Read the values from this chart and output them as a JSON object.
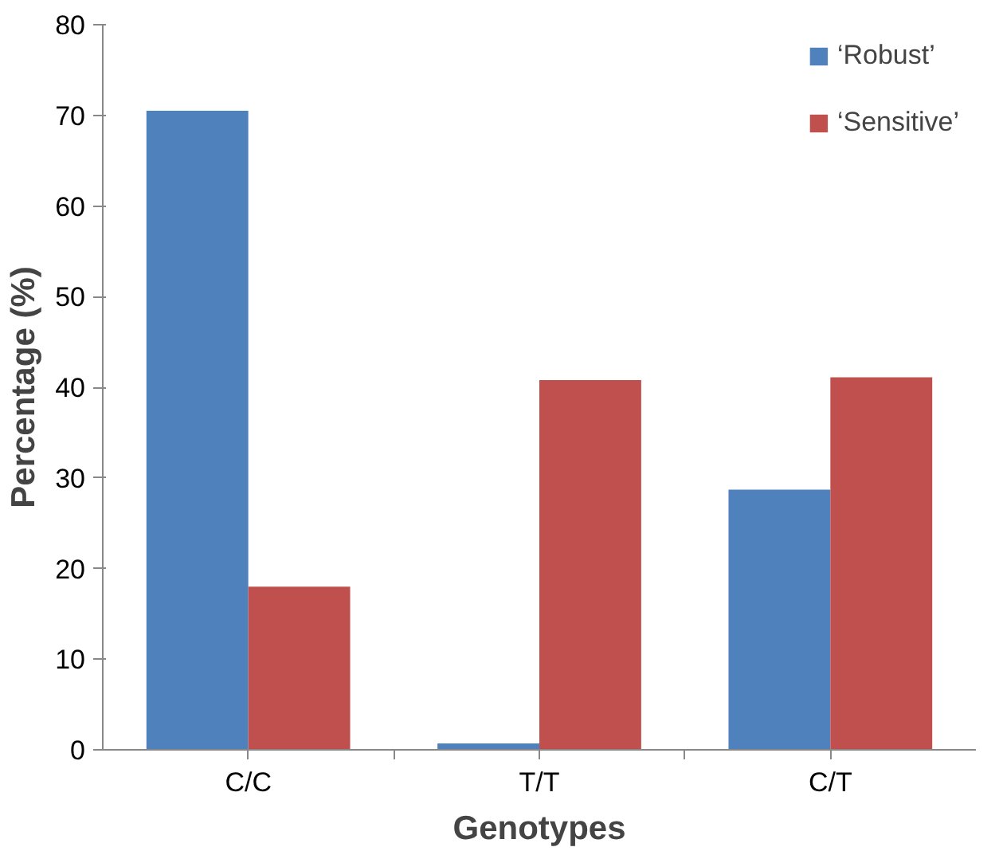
{
  "chart_data": {
    "type": "bar",
    "xlabel": "Genotypes",
    "ylabel": "Percentage (%)",
    "categories": [
      "C/C",
      "T/T",
      "C/T"
    ],
    "series": [
      {
        "name": "‘Robust’",
        "color": "#4f81bd",
        "values": [
          70.5,
          0.7,
          28.7
        ]
      },
      {
        "name": "‘Sensitive’",
        "color": "#c0504d",
        "values": [
          18,
          40.8,
          41.1
        ]
      }
    ],
    "ylim": [
      0,
      80
    ],
    "yticks": [
      0,
      10,
      20,
      30,
      40,
      50,
      60,
      70,
      80
    ],
    "grid": false,
    "legend": "top right"
  }
}
